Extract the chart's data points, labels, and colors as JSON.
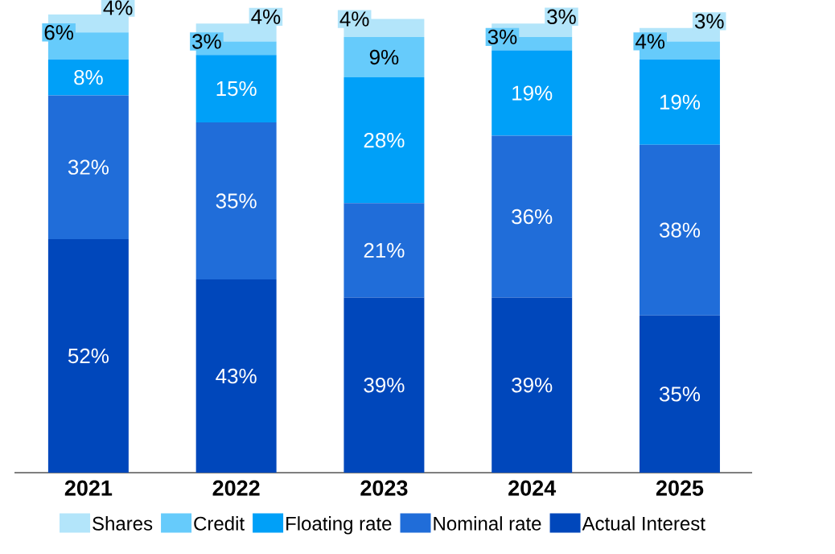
{
  "chart_data": {
    "type": "bar",
    "stacked": true,
    "legend": "bottom",
    "categories": [
      "2021",
      "2022",
      "2023",
      "2024",
      "2025"
    ],
    "series": [
      {
        "name": "Actual Interest",
        "color": "#0047bb",
        "values": [
          52,
          43,
          39,
          39,
          35
        ],
        "value_labels": [
          "52%",
          "43%",
          "39%",
          "39%",
          "35%"
        ]
      },
      {
        "name": "Nominal rate",
        "color": "#206dd9",
        "values": [
          32,
          35,
          21,
          36,
          38
        ],
        "value_labels": [
          "32%",
          "35%",
          "21%",
          "36%",
          "38%"
        ]
      },
      {
        "name": "Floating rate",
        "color": "#00a0f8",
        "values": [
          8,
          15,
          28,
          19,
          19
        ],
        "value_labels": [
          "8%",
          "15%",
          "28%",
          "19%",
          "19%"
        ]
      },
      {
        "name": "Credit",
        "color": "#66cbfb",
        "values": [
          6,
          3,
          9,
          3,
          4
        ],
        "value_labels": [
          "6%",
          "3%",
          "9%",
          "3%",
          "4%"
        ]
      },
      {
        "name": "Shares",
        "color": "#b3e5fa",
        "values": [
          4,
          4,
          4,
          3,
          3
        ],
        "value_labels": [
          "4%",
          "4%",
          "4%",
          "3%",
          "3%"
        ]
      }
    ]
  }
}
